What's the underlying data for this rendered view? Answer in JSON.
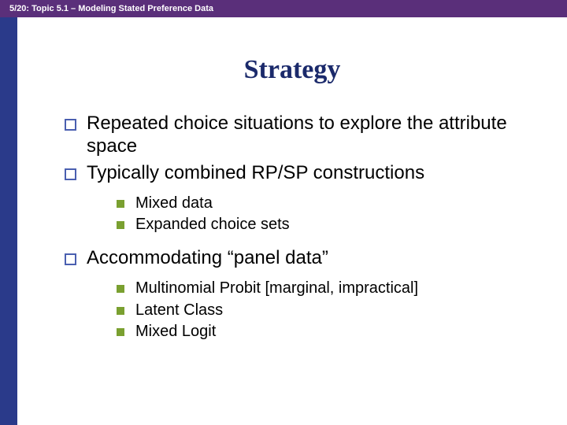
{
  "header": {
    "text": "5/20: Topic 5.1 – Modeling Stated Preference Data"
  },
  "slide": {
    "title": "Strategy",
    "bullets": [
      {
        "text": "Repeated choice situations to explore the attribute space"
      },
      {
        "text": "Typically combined RP/SP constructions",
        "sub": [
          {
            "text": "Mixed data"
          },
          {
            "text": "Expanded choice sets"
          }
        ]
      },
      {
        "text": "Accommodating “panel data”",
        "sub": [
          {
            "text": "Multinomial Probit [marginal, impractical]"
          },
          {
            "text": "Latent Class"
          },
          {
            "text": "Mixed Logit"
          }
        ]
      }
    ]
  },
  "colors": {
    "header_bg": "#5a2f7a",
    "stripe_bg": "#2a3a8a",
    "title_color": "#1b2a6b",
    "bullet1_border": "#4a5fb0",
    "bullet2_fill": "#7aa030"
  }
}
